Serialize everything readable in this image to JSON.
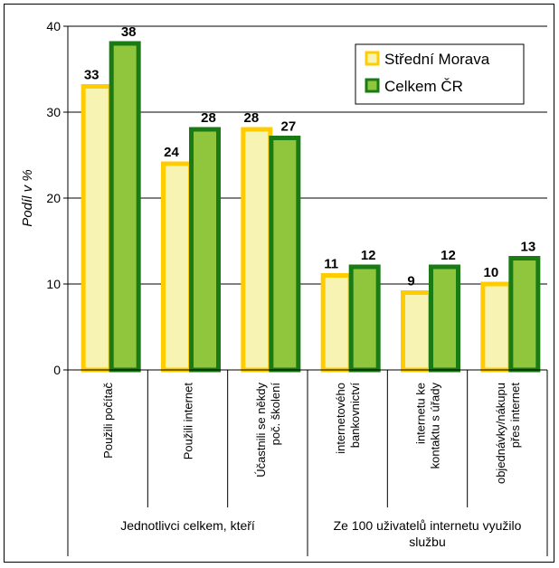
{
  "colors": {
    "series_fill": [
      "#f7f3b3",
      "#8fc63e"
    ],
    "series_stroke": [
      "#ffcc00",
      "#1a7a14"
    ]
  },
  "chart_data": {
    "type": "bar",
    "ylabel": "Podíl v %",
    "ylim": [
      0,
      40
    ],
    "yticks": [
      "0",
      "10",
      "20",
      "30",
      "40"
    ],
    "grid": true,
    "legend_position": "top-right",
    "categories": [
      [
        "Použili počítač"
      ],
      [
        "Použili internet"
      ],
      [
        "Účastnili se někdy",
        "poč. školení"
      ],
      [
        "internetového",
        "bankovnictví"
      ],
      [
        "internetu ke",
        "kontaktu s úřady"
      ],
      [
        "objednávky/nákupu",
        "přes internet"
      ]
    ],
    "groups": [
      {
        "label": [
          "Jednotlivci celkem, kteří"
        ],
        "span": [
          0,
          2
        ]
      },
      {
        "label": [
          "Ze 100 uživatelů internetu využilo",
          "službu"
        ],
        "span": [
          3,
          5
        ]
      }
    ],
    "series": [
      {
        "name": "Střední Morava",
        "values": [
          33,
          24,
          28,
          11,
          9,
          10
        ]
      },
      {
        "name": "Celkem ČR",
        "values": [
          38,
          28,
          27,
          12,
          12,
          13
        ]
      }
    ]
  }
}
